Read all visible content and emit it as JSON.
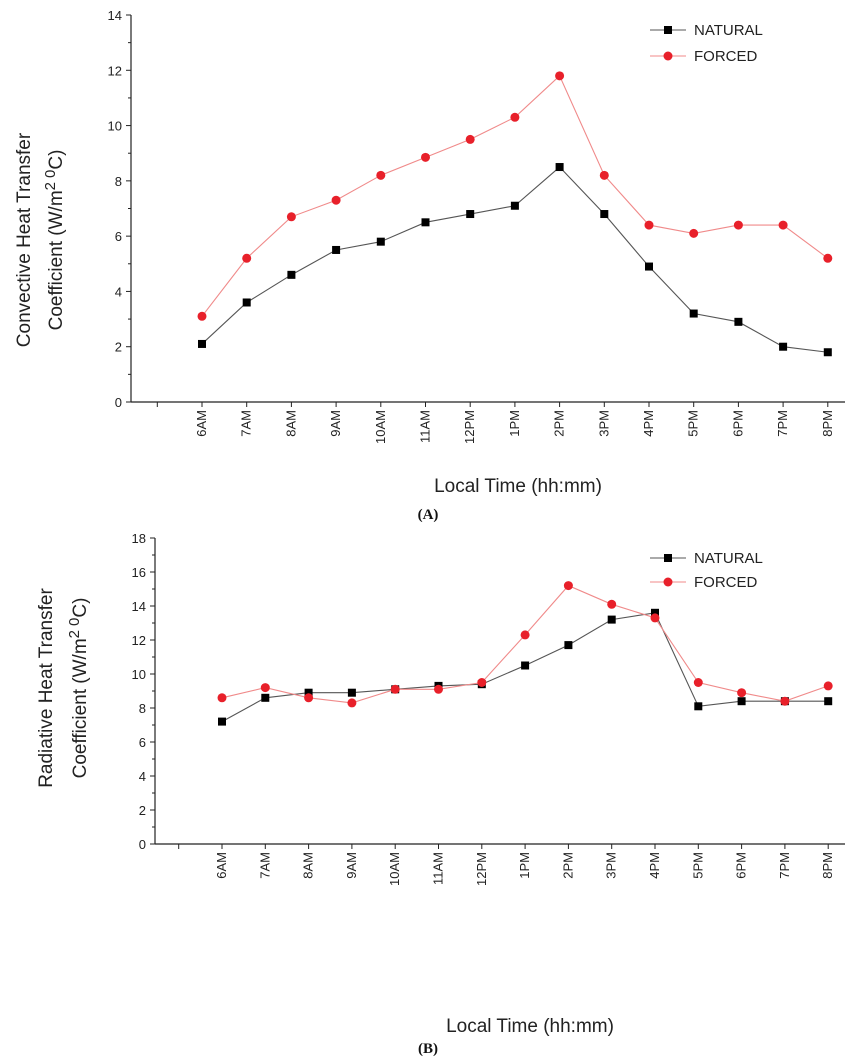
{
  "chart_data": [
    {
      "type": "line",
      "panel_label": "(A)",
      "xlabel": "Local Time (hh:mm)",
      "ylabel_line1": "Convective Heat Transfer",
      "ylabel_line2_prefix": "Coefficient (W/m",
      "ylabel_sup1": "2",
      "ylabel_sup2": "0",
      "ylabel_suffix": "C)",
      "ylim": [
        0,
        14
      ],
      "yticks": [
        0,
        2,
        4,
        6,
        8,
        10,
        12,
        14
      ],
      "categories": [
        "6AM",
        "7AM",
        "8AM",
        "9AM",
        "10AM",
        "11AM",
        "12PM",
        "1PM",
        "2PM",
        "3PM",
        "4PM",
        "5PM",
        "6PM",
        "7PM",
        "8PM"
      ],
      "legend_position": "top-right",
      "grid": false,
      "series": [
        {
          "name": "NATURAL",
          "color": "#000000",
          "marker": "square",
          "values": [
            2.1,
            3.6,
            4.6,
            5.5,
            5.8,
            6.5,
            6.8,
            7.1,
            8.5,
            6.8,
            4.9,
            3.2,
            2.9,
            2.0,
            1.8
          ]
        },
        {
          "name": "FORCED",
          "color": "#e8202a",
          "marker": "circle",
          "values": [
            3.1,
            5.2,
            6.7,
            7.3,
            8.2,
            8.85,
            9.5,
            10.3,
            11.8,
            8.2,
            6.4,
            6.1,
            6.4,
            6.4,
            5.2
          ]
        }
      ]
    },
    {
      "type": "line",
      "panel_label": "(B)",
      "xlabel": "Local Time (hh:mm)",
      "ylabel_line1": "Radiative Heat Transfer",
      "ylabel_line2_prefix": "Coefficient (W/m",
      "ylabel_sup1": "2",
      "ylabel_sup2": "0",
      "ylabel_suffix": "C)",
      "ylim": [
        0,
        18
      ],
      "yticks": [
        0,
        2,
        4,
        6,
        8,
        10,
        12,
        14,
        16,
        18
      ],
      "categories": [
        "6AM",
        "7AM",
        "8AM",
        "9AM",
        "10AM",
        "11AM",
        "12PM",
        "1PM",
        "2PM",
        "3PM",
        "4PM",
        "5PM",
        "6PM",
        "7PM",
        "8PM"
      ],
      "legend_position": "top-right",
      "grid": false,
      "series": [
        {
          "name": "NATURAL",
          "color": "#000000",
          "marker": "square",
          "values": [
            7.2,
            8.6,
            8.9,
            8.9,
            9.1,
            9.3,
            9.4,
            10.5,
            11.7,
            13.2,
            13.6,
            8.1,
            8.4,
            8.4,
            8.4
          ]
        },
        {
          "name": "FORCED",
          "color": "#e8202a",
          "marker": "circle",
          "values": [
            8.6,
            9.2,
            8.6,
            8.3,
            9.1,
            9.1,
            9.5,
            12.3,
            15.2,
            14.1,
            13.3,
            9.5,
            8.9,
            8.4,
            9.3
          ]
        }
      ]
    }
  ]
}
